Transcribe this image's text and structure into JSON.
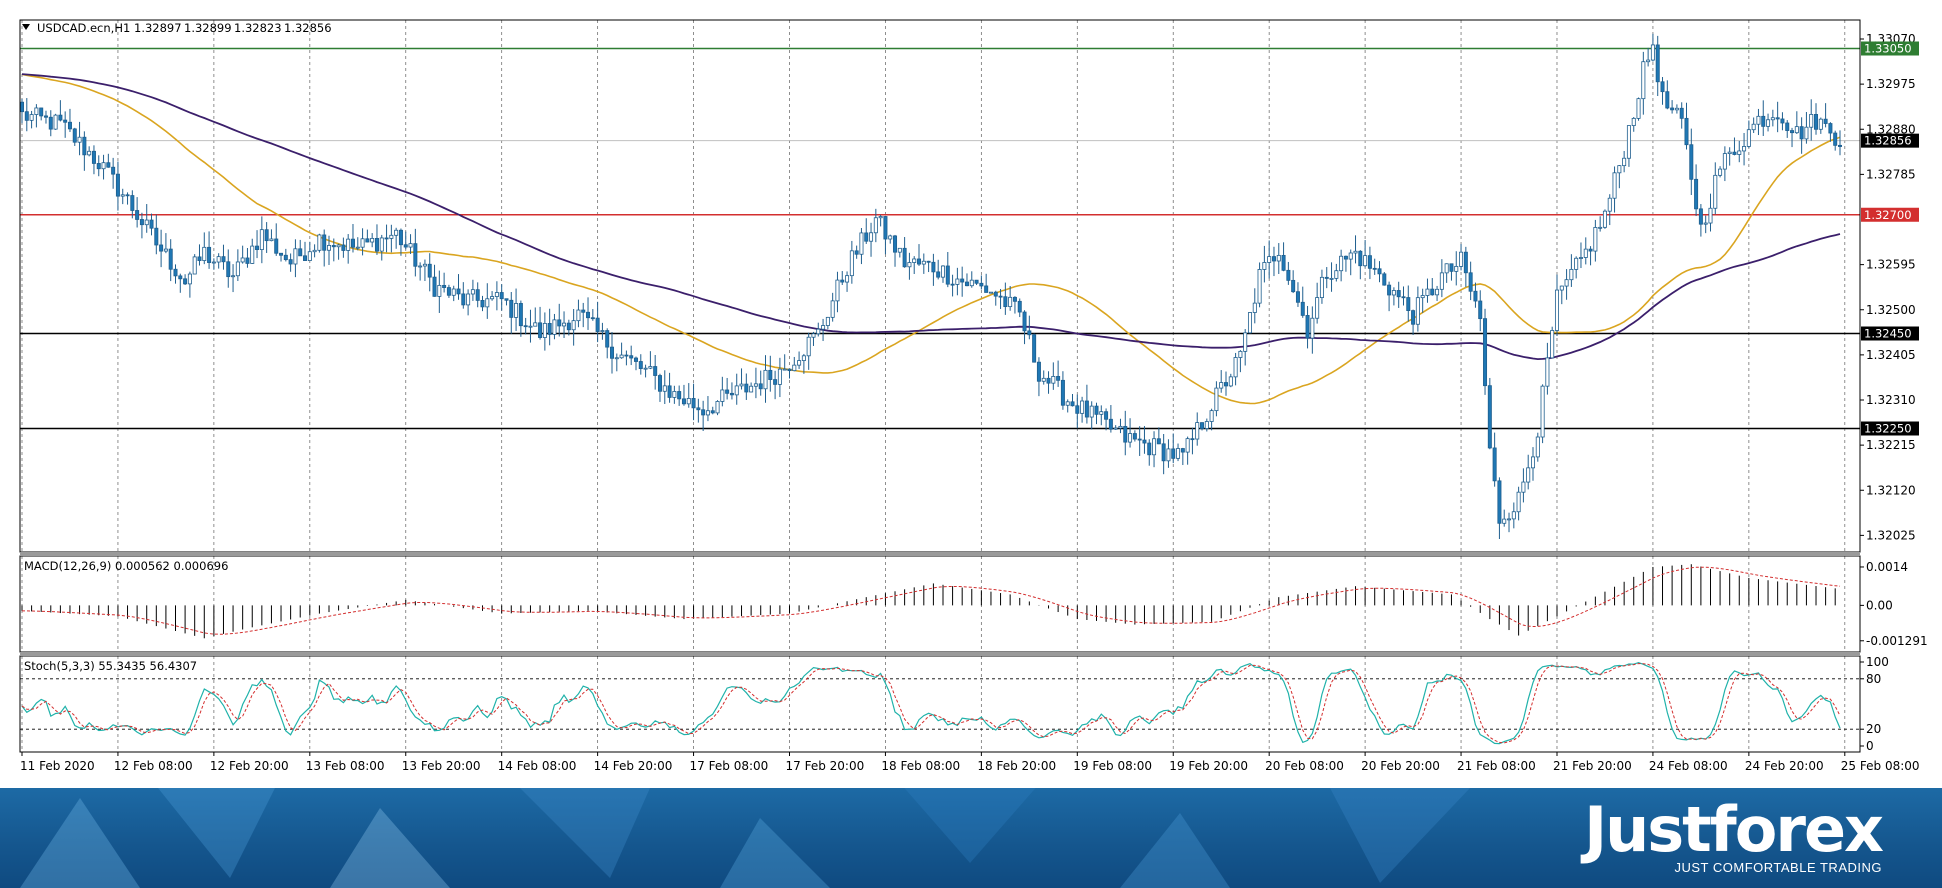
{
  "chart_data": {
    "type": "candlestick",
    "symbol_header": "USDCAD.ecn,H1",
    "ohlc": [
      "1.32897",
      "1.32899",
      "1.32823",
      "1.32856"
    ],
    "price_ticks": [
      "1.33070",
      "1.32975",
      "1.32880",
      "1.32785",
      "1.32595",
      "1.32500",
      "1.32405",
      "1.32310",
      "1.32215",
      "1.32120",
      "1.32025"
    ],
    "ylim": [
      1.3199,
      1.3311
    ],
    "current_price": 1.32856,
    "current_price_label": "1.32856",
    "levels": [
      {
        "value": 1.3305,
        "label": "1.33050",
        "color": "#2e7d32"
      },
      {
        "value": 1.327,
        "label": "1.32700",
        "color": "#d32f2f"
      },
      {
        "value": 1.3245,
        "label": "1.32450",
        "color": "#000000"
      },
      {
        "value": 1.3225,
        "label": "1.32250",
        "color": "#000000"
      }
    ],
    "colors": {
      "bull": "#ffffff",
      "bear": "#1f77b4",
      "ma_fast": "#daa520",
      "ma_slow": "#3b1f6b",
      "signal": "#d32f2f",
      "stoch_main": "#20b2aa"
    },
    "time_labels": [
      "11 Feb 2020",
      "12 Feb 08:00",
      "12 Feb 20:00",
      "13 Feb 08:00",
      "13 Feb 20:00",
      "14 Feb 08:00",
      "14 Feb 20:00",
      "17 Feb 08:00",
      "17 Feb 20:00",
      "18 Feb 08:00",
      "18 Feb 20:00",
      "19 Feb 08:00",
      "19 Feb 20:00",
      "20 Feb 08:00",
      "20 Feb 20:00",
      "21 Feb 08:00",
      "21 Feb 20:00",
      "24 Feb 08:00",
      "24 Feb 20:00",
      "25 Feb 08:00"
    ],
    "close_anchors": [
      [
        0,
        1.3291
      ],
      [
        8,
        1.3289
      ],
      [
        16,
        1.3281
      ],
      [
        22,
        1.3273
      ],
      [
        28,
        1.3264
      ],
      [
        34,
        1.3256
      ],
      [
        38,
        1.3262
      ],
      [
        44,
        1.3257
      ],
      [
        50,
        1.3266
      ],
      [
        56,
        1.326
      ],
      [
        62,
        1.3265
      ],
      [
        70,
        1.3263
      ],
      [
        78,
        1.3266
      ],
      [
        86,
        1.3255
      ],
      [
        92,
        1.3252
      ],
      [
        100,
        1.3252
      ],
      [
        108,
        1.3245
      ],
      [
        116,
        1.3249
      ],
      [
        124,
        1.3241
      ],
      [
        130,
        1.3237
      ],
      [
        136,
        1.3232
      ],
      [
        142,
        1.3229
      ],
      [
        150,
        1.3233
      ],
      [
        158,
        1.3237
      ],
      [
        166,
        1.3245
      ],
      [
        172,
        1.3259
      ],
      [
        178,
        1.3269
      ],
      [
        184,
        1.326
      ],
      [
        190,
        1.3259
      ],
      [
        196,
        1.3256
      ],
      [
        202,
        1.3254
      ],
      [
        208,
        1.3249
      ],
      [
        212,
        1.3237
      ],
      [
        218,
        1.3231
      ],
      [
        224,
        1.3227
      ],
      [
        230,
        1.3223
      ],
      [
        236,
        1.3221
      ],
      [
        242,
        1.3219
      ],
      [
        248,
        1.323
      ],
      [
        254,
        1.324
      ],
      [
        258,
        1.3257
      ],
      [
        262,
        1.3263
      ],
      [
        268,
        1.3246
      ],
      [
        272,
        1.3258
      ],
      [
        278,
        1.3262
      ],
      [
        284,
        1.3256
      ],
      [
        290,
        1.3249
      ],
      [
        296,
        1.3257
      ],
      [
        300,
        1.326
      ],
      [
        304,
        1.3248
      ],
      [
        306,
        1.322
      ],
      [
        308,
        1.3206
      ],
      [
        312,
        1.321
      ],
      [
        316,
        1.3225
      ],
      [
        320,
        1.3252
      ],
      [
        326,
        1.3262
      ],
      [
        330,
        1.327
      ],
      [
        334,
        1.3284
      ],
      [
        338,
        1.33
      ],
      [
        340,
        1.3306
      ],
      [
        342,
        1.3294
      ],
      [
        346,
        1.3289
      ],
      [
        350,
        1.3267
      ],
      [
        354,
        1.328
      ],
      [
        358,
        1.3285
      ],
      [
        362,
        1.329
      ],
      [
        366,
        1.3292
      ],
      [
        370,
        1.3287
      ],
      [
        374,
        1.329
      ],
      [
        379,
        1.3286
      ]
    ],
    "macd": {
      "label": "MACD(12,26,9) 0.000562 0.000696",
      "ticks": [
        "0.0014",
        "0.00",
        "-0.001291"
      ],
      "ylim": [
        -0.0017,
        0.0018
      ],
      "anchors": [
        [
          0,
          -0.0002
        ],
        [
          20,
          -0.0004
        ],
        [
          38,
          -0.0012
        ],
        [
          48,
          -0.0008
        ],
        [
          62,
          -0.0003
        ],
        [
          80,
          0.0002
        ],
        [
          100,
          -0.0003
        ],
        [
          118,
          -0.0002
        ],
        [
          138,
          -0.0005
        ],
        [
          160,
          -0.0003
        ],
        [
          176,
          0.0003
        ],
        [
          190,
          0.0008
        ],
        [
          206,
          0.0004
        ],
        [
          220,
          -0.0005
        ],
        [
          232,
          -0.0007
        ],
        [
          248,
          -0.0006
        ],
        [
          262,
          0.0003
        ],
        [
          278,
          0.0007
        ],
        [
          298,
          0.0004
        ],
        [
          306,
          -0.0005
        ],
        [
          312,
          -0.0011
        ],
        [
          320,
          -0.0004
        ],
        [
          330,
          0.0005
        ],
        [
          340,
          0.0014
        ],
        [
          348,
          0.0015
        ],
        [
          360,
          0.001
        ],
        [
          379,
          0.0006
        ]
      ]
    },
    "stoch": {
      "label": "Stoch(5,3,3) 55.3435 56.4307",
      "ticks": [
        "100",
        "80",
        "20",
        "0"
      ],
      "ylim": [
        0,
        100
      ],
      "levels": [
        20,
        80
      ]
    }
  },
  "brand": {
    "name": "Justforex",
    "slogan": "JUST COMFORTABLE TRADING"
  }
}
